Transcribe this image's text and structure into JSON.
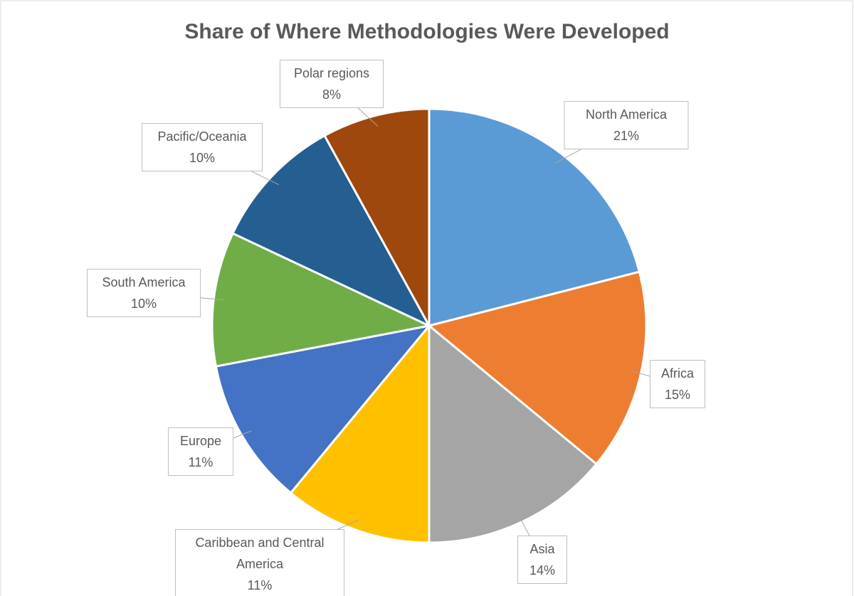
{
  "chart_data": {
    "type": "pie",
    "title": "Share of Where Methodologies Were Developed",
    "categories": [
      "North America",
      "Africa",
      "Asia",
      "Caribbean and Central America",
      "Europe",
      "South America",
      "Pacific/Oceania",
      "Polar regions"
    ],
    "values": [
      21,
      15,
      14,
      11,
      11,
      10,
      10,
      8
    ],
    "value_labels": [
      "21%",
      "15%",
      "14%",
      "11%",
      "11%",
      "10%",
      "10%",
      "8%"
    ],
    "colors": [
      "#5b9bd5",
      "#ed7d31",
      "#a5a5a5",
      "#ffc000",
      "#4472c4",
      "#70ad47",
      "#255e91",
      "#9e480e"
    ]
  }
}
